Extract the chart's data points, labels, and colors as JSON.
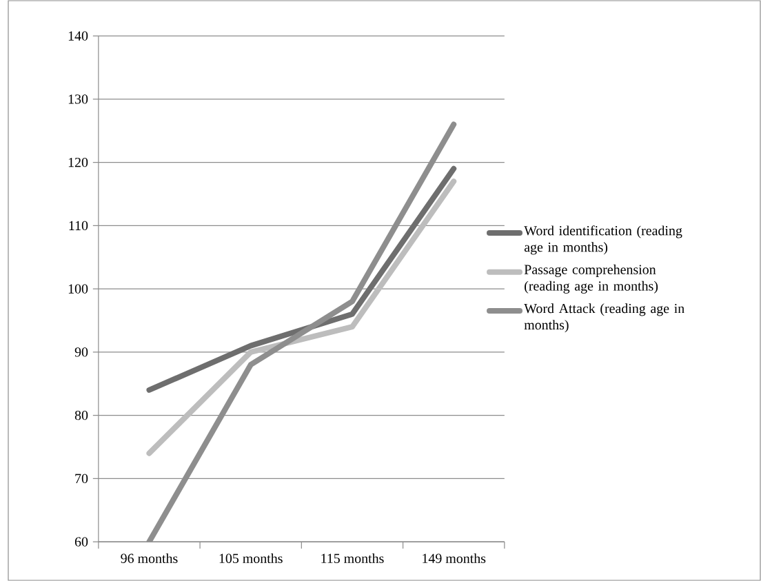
{
  "chart_data": {
    "type": "line",
    "categories": [
      "96 months",
      "105 months",
      "115 months",
      "149 months"
    ],
    "series": [
      {
        "name": "Word identification (reading age in months)",
        "color": "#6e6e6e",
        "values": [
          84,
          91,
          96,
          119
        ]
      },
      {
        "name": "Passage comprehension (reading age in months)",
        "color": "#bdbdbd",
        "values": [
          74,
          90,
          94,
          117
        ]
      },
      {
        "name": "Word Attack (reading age in months)",
        "color": "#8e8e8e",
        "values": [
          60,
          88,
          98,
          126
        ]
      }
    ],
    "ylim": [
      60,
      140
    ],
    "yticks": [
      60,
      70,
      80,
      90,
      100,
      110,
      120,
      130,
      140
    ],
    "grid": "y",
    "legend": "right",
    "marker": "none",
    "line_style": "solid"
  }
}
